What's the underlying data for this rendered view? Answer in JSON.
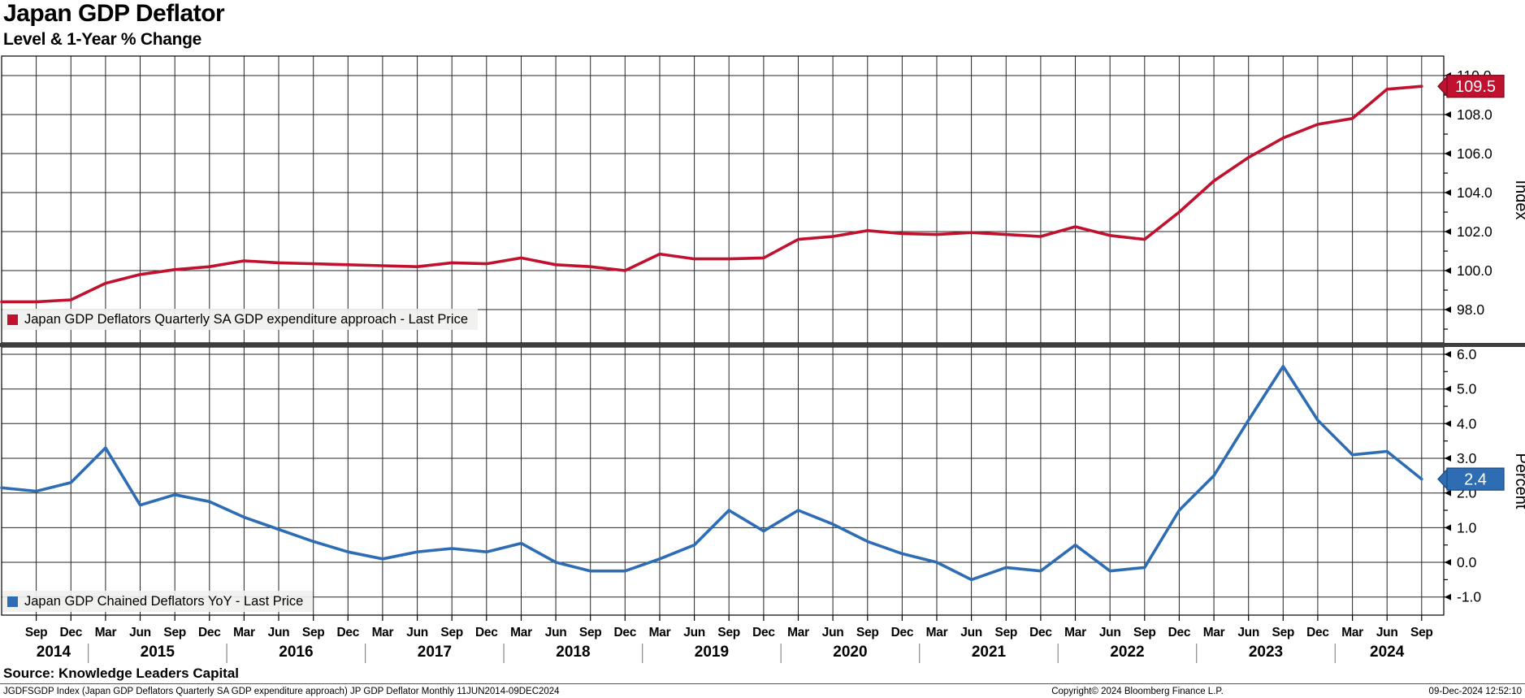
{
  "header": {
    "title": "Japan GDP Deflator",
    "subtitle": "Level & 1-Year % Change"
  },
  "source_line": "Source: Knowledge Leaders Capital",
  "footer": {
    "left": "JGDFSGDP Index (Japan GDP Deflators Quarterly SA GDP expenditure approach) JP GDP Deflator  Monthly 11JUN2014-09DEC2024",
    "center": "Copyright© 2024 Bloomberg Finance L.P.",
    "right": "09-Dec-2024 12:52:10"
  },
  "x_axis": {
    "tick_labels": [
      "Sep",
      "Dec",
      "Mar",
      "Jun",
      "Sep",
      "Dec",
      "Mar",
      "Jun",
      "Sep",
      "Dec",
      "Mar",
      "Jun",
      "Sep",
      "Dec",
      "Mar",
      "Jun",
      "Sep",
      "Dec",
      "Mar",
      "Jun",
      "Sep",
      "Dec",
      "Mar",
      "Jun",
      "Sep",
      "Dec",
      "Mar",
      "Jun",
      "Sep",
      "Dec",
      "Mar",
      "Jun",
      "Sep",
      "Dec",
      "Mar",
      "Jun",
      "Sep",
      "Dec",
      "Mar",
      "Jun",
      "Sep"
    ],
    "years": [
      {
        "label": "2014",
        "from": 1,
        "to": 2
      },
      {
        "label": "2015",
        "from": 3,
        "to": 6
      },
      {
        "label": "2016",
        "from": 7,
        "to": 10
      },
      {
        "label": "2017",
        "from": 11,
        "to": 14
      },
      {
        "label": "2018",
        "from": 15,
        "to": 18
      },
      {
        "label": "2019",
        "from": 19,
        "to": 22
      },
      {
        "label": "2020",
        "from": 23,
        "to": 26
      },
      {
        "label": "2021",
        "from": 27,
        "to": 30
      },
      {
        "label": "2022",
        "from": 31,
        "to": 34
      },
      {
        "label": "2023",
        "from": 35,
        "to": 38
      },
      {
        "label": "2024",
        "from": 39,
        "to": 41
      }
    ]
  },
  "chart_data": [
    {
      "type": "line",
      "panel": "top",
      "legend": "Japan GDP Deflators Quarterly SA GDP expenditure approach - Last Price",
      "color": "#c0112e",
      "badge": {
        "text": "109.5",
        "fill": "#c0112e",
        "border": "#7c0b1f"
      },
      "axis_title": "Index",
      "ylim": [
        96.3,
        111.0
      ],
      "yticks": [
        98,
        100,
        102,
        104,
        106,
        108,
        110
      ],
      "ytick_labels": [
        "98.0",
        "100.0",
        "102.0",
        "104.0",
        "106.0",
        "108.0",
        "110.0"
      ],
      "minor_tick_step": 1.0,
      "grid": true,
      "legend_position": "bottom-left",
      "x": [
        "Jun 2014",
        "Sep 2014",
        "Dec 2014",
        "Mar 2015",
        "Jun 2015",
        "Sep 2015",
        "Dec 2015",
        "Mar 2016",
        "Jun 2016",
        "Sep 2016",
        "Dec 2016",
        "Mar 2017",
        "Jun 2017",
        "Sep 2017",
        "Dec 2017",
        "Mar 2018",
        "Jun 2018",
        "Sep 2018",
        "Dec 2018",
        "Mar 2019",
        "Jun 2019",
        "Sep 2019",
        "Dec 2019",
        "Mar 2020",
        "Jun 2020",
        "Sep 2020",
        "Dec 2020",
        "Mar 2021",
        "Jun 2021",
        "Sep 2021",
        "Dec 2021",
        "Mar 2022",
        "Jun 2022",
        "Sep 2022",
        "Dec 2022",
        "Mar 2023",
        "Jun 2023",
        "Sep 2023",
        "Dec 2023",
        "Mar 2024",
        "Jun 2024",
        "Sep 2024"
      ],
      "values": [
        98.4,
        98.4,
        98.5,
        99.35,
        99.8,
        100.05,
        100.2,
        100.5,
        100.4,
        100.35,
        100.3,
        100.25,
        100.2,
        100.4,
        100.35,
        100.65,
        100.3,
        100.2,
        100.0,
        100.85,
        100.6,
        100.6,
        100.65,
        101.6,
        101.75,
        102.05,
        101.9,
        101.85,
        101.95,
        101.85,
        101.75,
        102.25,
        101.8,
        101.6,
        103.0,
        104.6,
        105.8,
        106.8,
        107.5,
        107.8,
        109.3,
        109.45
      ]
    },
    {
      "type": "line",
      "panel": "bottom",
      "legend": "Japan GDP Chained Deflators YoY - Last Price",
      "color": "#2e6db4",
      "badge": {
        "text": "2.4",
        "fill": "#2e6db4",
        "border": "#1c4d86"
      },
      "axis_title": "Percent",
      "ylim": [
        -1.52,
        6.2
      ],
      "yticks": [
        -1,
        0,
        1,
        2,
        3,
        4,
        5,
        6
      ],
      "ytick_labels": [
        "-1.0",
        "0.0",
        "1.0",
        "2.0",
        "3.0",
        "4.0",
        "5.0",
        "6.0"
      ],
      "minor_tick_step": 0.5,
      "grid": true,
      "legend_position": "bottom-left",
      "x": [
        "Jun 2014",
        "Sep 2014",
        "Dec 2014",
        "Mar 2015",
        "Jun 2015",
        "Sep 2015",
        "Dec 2015",
        "Mar 2016",
        "Jun 2016",
        "Sep 2016",
        "Dec 2016",
        "Mar 2017",
        "Jun 2017",
        "Sep 2017",
        "Dec 2017",
        "Mar 2018",
        "Jun 2018",
        "Sep 2018",
        "Dec 2018",
        "Mar 2019",
        "Jun 2019",
        "Sep 2019",
        "Dec 2019",
        "Mar 2020",
        "Jun 2020",
        "Sep 2020",
        "Dec 2020",
        "Mar 2021",
        "Jun 2021",
        "Sep 2021",
        "Dec 2021",
        "Mar 2022",
        "Jun 2022",
        "Sep 2022",
        "Dec 2022",
        "Mar 2023",
        "Jun 2023",
        "Sep 2023",
        "Dec 2023",
        "Mar 2024",
        "Jun 2024",
        "Sep 2024"
      ],
      "values": [
        2.15,
        2.05,
        2.3,
        3.3,
        1.65,
        1.95,
        1.75,
        1.3,
        0.95,
        0.6,
        0.3,
        0.1,
        0.3,
        0.4,
        0.3,
        0.55,
        0.0,
        -0.25,
        -0.25,
        0.1,
        0.5,
        1.5,
        0.9,
        1.5,
        1.1,
        0.6,
        0.25,
        0.0,
        -0.5,
        -0.15,
        -0.25,
        0.5,
        -0.25,
        -0.15,
        1.5,
        2.5,
        4.1,
        5.65,
        4.1,
        3.1,
        3.2,
        2.4
      ]
    }
  ],
  "style": {
    "grid_color": "#262626",
    "separator_color": "#3d3d3d",
    "legend_bg": "#f0f0ee"
  }
}
